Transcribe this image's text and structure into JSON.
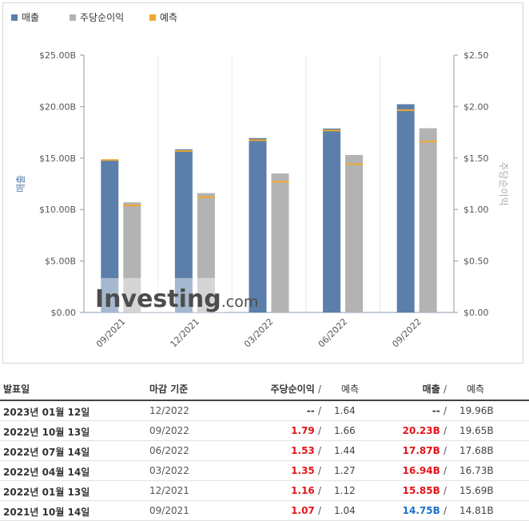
{
  "legend": [
    {
      "label": "매출",
      "color": "#5b7faa"
    },
    {
      "label": "주당순이익",
      "color": "#b3b3b3"
    },
    {
      "label": "예측",
      "color": "#f0a830"
    }
  ],
  "chart_data": {
    "type": "bar",
    "categories": [
      "09/2021",
      "12/2021",
      "03/2022",
      "06/2022",
      "09/2022"
    ],
    "series": [
      {
        "name": "매출",
        "axis": "left",
        "color": "#5b7faa",
        "values": [
          14.75,
          15.85,
          16.94,
          17.87,
          20.23
        ],
        "forecast": [
          14.81,
          15.69,
          16.73,
          17.68,
          19.65
        ]
      },
      {
        "name": "주당순이익",
        "axis": "right",
        "color": "#b3b3b3",
        "values": [
          1.07,
          1.16,
          1.35,
          1.53,
          1.79
        ],
        "forecast": [
          1.04,
          1.12,
          1.27,
          1.44,
          1.66
        ]
      }
    ],
    "forecast_color": "#f0a830",
    "ylabel_left": "매출",
    "ylabel_right": "주당순이익",
    "ylim_left": [
      0,
      25
    ],
    "ylim_right": [
      0,
      2.5
    ],
    "yticks_left": [
      "$0.00",
      "$5.00B",
      "$10.00B",
      "$15.00B",
      "$20.00B",
      "$25.00B"
    ],
    "yticks_right": [
      "$0.00",
      "$0.50",
      "$1.00",
      "$1.50",
      "$2.00",
      "$2.50"
    ],
    "watermark": "Investing.com",
    "grid": "vertical"
  },
  "table": {
    "headers": {
      "date": "발표일",
      "period": "마감 기준",
      "eps": "주당순이익",
      "eps_fc": "예측",
      "rev": "매출",
      "rev_fc": "예측"
    },
    "rows": [
      {
        "date": "2023년 01월 12일",
        "period": "12/2022",
        "eps": "--",
        "eps_class": "plain",
        "eps_fc": "1.64",
        "rev": "--",
        "rev_class": "plain",
        "rev_fc": "19.96B"
      },
      {
        "date": "2022년 10월 13일",
        "period": "09/2022",
        "eps": "1.79",
        "eps_class": "red",
        "eps_fc": "1.66",
        "rev": "20.23B",
        "rev_class": "red",
        "rev_fc": "19.65B"
      },
      {
        "date": "2022년 07월 14일",
        "period": "06/2022",
        "eps": "1.53",
        "eps_class": "red",
        "eps_fc": "1.44",
        "rev": "17.87B",
        "rev_class": "red",
        "rev_fc": "17.68B"
      },
      {
        "date": "2022년 04월 14일",
        "period": "03/2022",
        "eps": "1.35",
        "eps_class": "red",
        "eps_fc": "1.27",
        "rev": "16.94B",
        "rev_class": "red",
        "rev_fc": "16.73B"
      },
      {
        "date": "2022년 01월 13일",
        "period": "12/2021",
        "eps": "1.16",
        "eps_class": "red",
        "eps_fc": "1.12",
        "rev": "15.85B",
        "rev_class": "red",
        "rev_fc": "15.69B"
      },
      {
        "date": "2021년 10월 14일",
        "period": "09/2021",
        "eps": "1.07",
        "eps_class": "red",
        "eps_fc": "1.04",
        "rev": "14.75B",
        "rev_class": "blue",
        "rev_fc": "14.81B"
      }
    ]
  }
}
